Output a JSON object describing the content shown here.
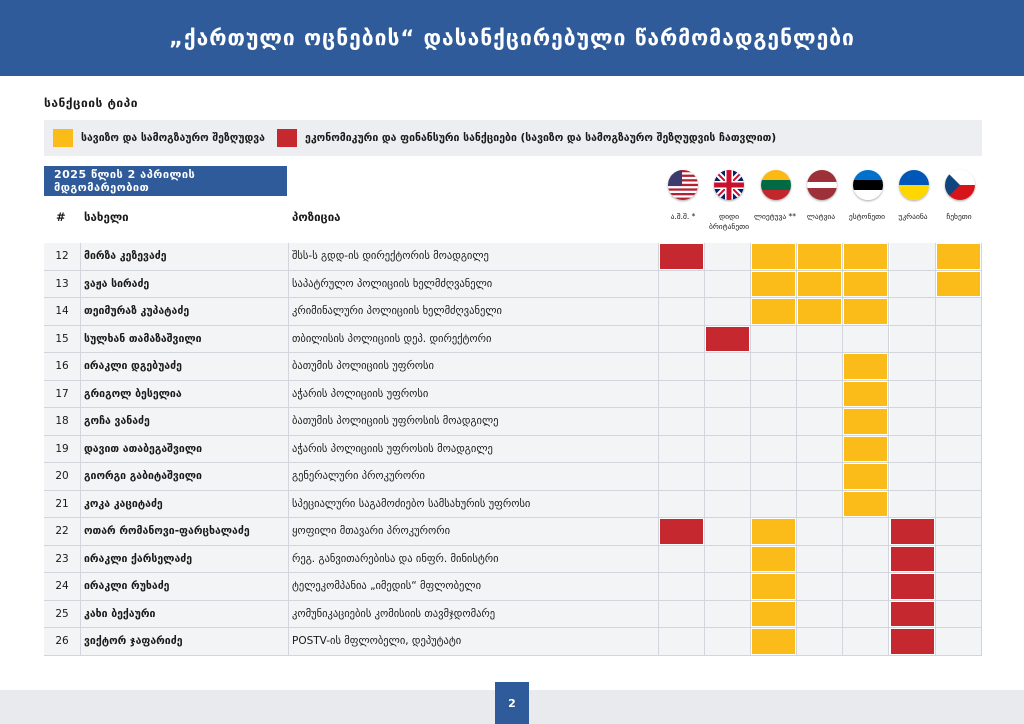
{
  "header": {
    "title": "„ქართული ოცნების“ დასანქცირებული წარმომადგენლები"
  },
  "section_title": "სანქციის ტიპი",
  "legend": [
    {
      "color": "#fbbc1a",
      "label": "სავიზო და სამოგზაურო შეზღუდვა"
    },
    {
      "color": "#c5282f",
      "label": "ეკონომიკური და ფინანსური სანქციები (სავიზო და სამოგზაურო შეზღუდვის ჩათვლით)"
    }
  ],
  "date_banner": "2025 წლის 2 აპრილის მდგომარეობით",
  "columns": {
    "num": "#",
    "name": "სახელი",
    "position": "პოზიცია"
  },
  "countries": [
    {
      "label": "ა.შ.შ. *",
      "flag": "usa-flag-icon"
    },
    {
      "label": "დიდი ბრიტანეთი",
      "flag": "uk-flag-icon"
    },
    {
      "label": "ლიეტუვა **",
      "flag": "lithuania-flag-icon"
    },
    {
      "label": "ლატვია",
      "flag": "latvia-flag-icon"
    },
    {
      "label": "ესტონეთი",
      "flag": "estonia-flag-icon"
    },
    {
      "label": "უკრაინა",
      "flag": "ukraine-flag-icon"
    },
    {
      "label": "ჩეხეთი",
      "flag": "czechia-flag-icon"
    }
  ],
  "sanction_colors": {
    "Y": "#fbbc1a",
    "R": "#c5282f"
  },
  "rows": [
    {
      "num": "12",
      "name": "მირზა კეზევაძე",
      "position": "შსს-ს გდდ-ის დირექტორის მოადგილე",
      "sanctions": [
        "R",
        "",
        "Y",
        "Y",
        "Y",
        "",
        "Y"
      ]
    },
    {
      "num": "13",
      "name": "ვაჟა სირაძე",
      "position": "საპატრულო პოლიციის ხელმძღვანელი",
      "sanctions": [
        "",
        "",
        "Y",
        "Y",
        "Y",
        "",
        "Y"
      ]
    },
    {
      "num": "14",
      "name": "თეიმურაზ კუპატაძე",
      "position": "კრიმინალური პოლიციის ხელმძღვანელი",
      "sanctions": [
        "",
        "",
        "Y",
        "Y",
        "Y",
        "",
        ""
      ]
    },
    {
      "num": "15",
      "name": "სულხან თამაზაშვილი",
      "position": "თბილისის პოლიციის დეპ. დირექტორი",
      "sanctions": [
        "",
        "R",
        "",
        "",
        "",
        "",
        ""
      ]
    },
    {
      "num": "16",
      "name": "ირაკლი დგებუაძე",
      "position": "ბათუმის პოლიციის უფროსი",
      "sanctions": [
        "",
        "",
        "",
        "",
        "Y",
        "",
        ""
      ]
    },
    {
      "num": "17",
      "name": "გრიგოლ ბესელია",
      "position": "აჭარის პოლიციის უფროსი",
      "sanctions": [
        "",
        "",
        "",
        "",
        "Y",
        "",
        ""
      ]
    },
    {
      "num": "18",
      "name": "გოჩა ვანაძე",
      "position": "ბათუმის პოლიციის უფროსის მოადგილე",
      "sanctions": [
        "",
        "",
        "",
        "",
        "Y",
        "",
        ""
      ]
    },
    {
      "num": "19",
      "name": "დავით ათაბეგაშვილი",
      "position": "აჭარის პოლიციის უფროსის მოადგილე",
      "sanctions": [
        "",
        "",
        "",
        "",
        "Y",
        "",
        ""
      ]
    },
    {
      "num": "20",
      "name": "გიორგი გაბიტაშვილი",
      "position": "გენერალური პროკურორი",
      "sanctions": [
        "",
        "",
        "",
        "",
        "Y",
        "",
        ""
      ]
    },
    {
      "num": "21",
      "name": "კოკა კაციტაძე",
      "position": "სპეციალური საგამოძიებო სამსახურის უფროსი",
      "sanctions": [
        "",
        "",
        "",
        "",
        "Y",
        "",
        ""
      ]
    },
    {
      "num": "22",
      "name": "ოთარ რომანოვი-ფარცხალაძე",
      "position": "ყოფილი მთავარი პროკურორი",
      "sanctions": [
        "R",
        "",
        "Y",
        "",
        "",
        "R",
        ""
      ]
    },
    {
      "num": "23",
      "name": "ირაკლი ქარსელაძე",
      "position": "რეგ. განვითარებისა და ინფრ. მინისტრი",
      "sanctions": [
        "",
        "",
        "Y",
        "",
        "",
        "R",
        ""
      ]
    },
    {
      "num": "24",
      "name": "ირაკლი რუხაძე",
      "position": "ტელეკომპანია „იმედის“ მფლობელი",
      "sanctions": [
        "",
        "",
        "Y",
        "",
        "",
        "R",
        ""
      ]
    },
    {
      "num": "25",
      "name": "კახი ბექაური",
      "position": "კომუნიკაციების კომისიის თავმჯდომარე",
      "sanctions": [
        "",
        "",
        "Y",
        "",
        "",
        "R",
        ""
      ]
    },
    {
      "num": "26",
      "name": "ვიქტორ ჯაფარიძე",
      "position": "POSTV-ის მფლობელი, დეპუტატი",
      "sanctions": [
        "",
        "",
        "Y",
        "",
        "",
        "R",
        ""
      ]
    }
  ],
  "page_number": "2"
}
